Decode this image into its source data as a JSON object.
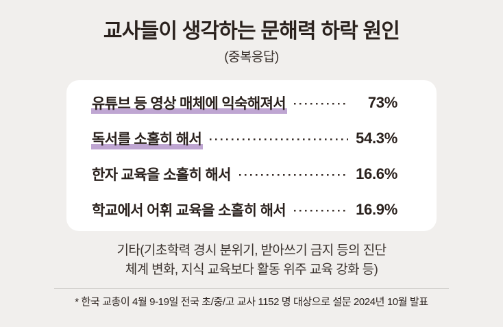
{
  "header": {
    "title": "교사들이 생각하는 문해력 하락 원인",
    "subtitle": "(중복응답)"
  },
  "chart_data": {
    "type": "table",
    "title": "교사들이 생각하는 문해력 하락 원인",
    "subtitle": "(중복응답)",
    "categories": [
      "유튜브 등 영상 매체에 익숙해져서",
      "독서를 소홀히 해서",
      "한자 교육을 소홀히 해서",
      "학교에서 어휘 교육을 소홀히 해서"
    ],
    "values": [
      73,
      54.3,
      16.6,
      16.9
    ],
    "value_labels": [
      "73%",
      "54.3%",
      "16.6%",
      "16.9%"
    ],
    "highlighted_categories": [
      "유튜브 등 영상 매체에 익숙해져서",
      "독서를 소홀히 해서"
    ],
    "unit": "%",
    "legend_position": "none",
    "grid": false
  },
  "rows": [
    {
      "label": "유튜브 등 영상 매체에 익숙해져서",
      "value": "73%",
      "highlighted": true
    },
    {
      "label": "독서를 소홀히 해서",
      "value": "54.3%",
      "highlighted": true
    },
    {
      "label": "한자 교육을 소홀히 해서",
      "value": "16.6%",
      "highlighted": false
    },
    {
      "label": "학교에서 어휘 교육을 소홀히 해서",
      "value": "16.9%",
      "highlighted": false
    }
  ],
  "notes": {
    "other_line1": "기타(기초학력 경시 분위기, 받아쓰기 금지 등의 진단",
    "other_line2": "체계 변화, 지식 교육보다 활동 위주 교육 강화 등)",
    "source": "* 한국 교총이 4월 9-19일 전국 초/중/고 교사 1152 명 대상으로 설문 2024년 10월 발표"
  },
  "colors": {
    "background": "#f1efed",
    "card": "#ffffff",
    "text": "#2a211d",
    "muted_text": "#3b332e",
    "highlight": "#bfa6d2",
    "divider": "#c7c4c1"
  }
}
